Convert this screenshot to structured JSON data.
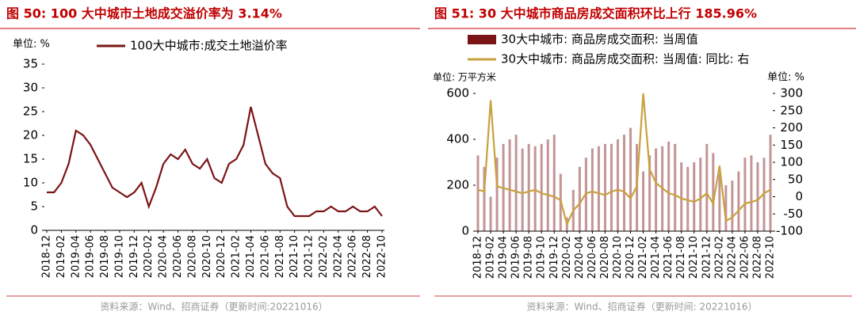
{
  "chart_data": [
    {
      "type": "line",
      "title": "图 50: 100 大中城市土地成交溢价率为 3.14%",
      "y_label": "单位: %",
      "source": "资料来源：Wind、招商证券（更新时间:20221016）",
      "categories": [
        "2018-12",
        null,
        "2019-02",
        null,
        "2019-04",
        null,
        "2019-06",
        null,
        "2019-08",
        null,
        "2019-10",
        null,
        "2019-12",
        null,
        "2020-02",
        null,
        "2020-04",
        null,
        "2020-06",
        null,
        "2020-08",
        null,
        "2020-10",
        null,
        "2020-12",
        null,
        "2021-02",
        null,
        "2021-04",
        null,
        "2021-06",
        null,
        "2021-08",
        null,
        "2021-10",
        null,
        "2021-12",
        null,
        "2022-02",
        null,
        "2022-04",
        null,
        "2022-06",
        null,
        "2022-08",
        null,
        "2022-10"
      ],
      "series": [
        {
          "name": "100大中城市:成交土地溢价率",
          "color": "#7b1416",
          "values": [
            8,
            8,
            10,
            14,
            21,
            20,
            18,
            15,
            12,
            9,
            8,
            7,
            8,
            10,
            5,
            9,
            14,
            16,
            15,
            17,
            14,
            13,
            15,
            11,
            10,
            14,
            15,
            18,
            26,
            20,
            14,
            12,
            11,
            5,
            3,
            3,
            3,
            4,
            4,
            5,
            4,
            4,
            5,
            4,
            4,
            5,
            3
          ]
        }
      ],
      "ylim": [
        0,
        35
      ],
      "yticks": [
        0,
        5,
        10,
        15,
        20,
        25,
        30,
        35
      ]
    },
    {
      "type": "combo",
      "title": "图 51: 30 大中城市商品房成交面积环比上行 185.96%",
      "y_label": "单位:  万平方米",
      "y2_label": "单位:  %",
      "source": "资料来源：Wind、招商证券（更新时间: 20221016）",
      "categories": [
        "2018-12",
        null,
        "2019-02",
        null,
        "2019-04",
        null,
        "2019-06",
        null,
        "2019-08",
        null,
        "2019-10",
        null,
        "2019-12",
        null,
        "2020-02",
        null,
        "2020-04",
        null,
        "2020-06",
        null,
        "2020-08",
        null,
        "2020-10",
        null,
        "2020-12",
        null,
        "2021-02",
        null,
        "2021-04",
        null,
        "2021-06",
        null,
        "2021-08",
        null,
        "2021-10",
        null,
        "2021-12",
        null,
        "2022-02",
        null,
        "2022-04",
        null,
        "2022-06",
        null,
        "2022-08",
        null,
        "2022-10"
      ],
      "series": [
        {
          "name": "30大中城市: 商品房成交面积: 当周值",
          "color": "#7b1416",
          "type": "bar",
          "values": [
            330,
            280,
            150,
            320,
            380,
            400,
            420,
            360,
            380,
            370,
            380,
            400,
            420,
            250,
            60,
            180,
            280,
            320,
            360,
            370,
            380,
            380,
            400,
            420,
            450,
            380,
            260,
            330,
            360,
            370,
            390,
            380,
            300,
            280,
            300,
            320,
            380,
            340,
            250,
            200,
            220,
            260,
            320,
            330,
            300,
            320,
            420
          ]
        },
        {
          "name": "30大中城市: 商品房成交面积: 当周值: 同比: 右",
          "color": "#c9a13c",
          "type": "line",
          "axis": "y2",
          "values": [
            20,
            15,
            280,
            30,
            25,
            20,
            15,
            10,
            15,
            20,
            10,
            5,
            0,
            -10,
            -80,
            -40,
            -20,
            10,
            15,
            10,
            5,
            15,
            20,
            15,
            -5,
            30,
            300,
            80,
            40,
            25,
            10,
            5,
            -5,
            -10,
            -15,
            -5,
            10,
            -20,
            90,
            -70,
            -60,
            -40,
            -20,
            -15,
            -10,
            10,
            20
          ]
        }
      ],
      "ylim": [
        0,
        600
      ],
      "yticks": [
        0,
        200,
        400,
        600
      ],
      "y2lim": [
        -100,
        300
      ],
      "y2ticks": [
        -100,
        -50,
        0,
        50,
        100,
        150,
        200,
        250,
        300
      ],
      "y2_negative_tick_color": "#e00000"
    }
  ]
}
